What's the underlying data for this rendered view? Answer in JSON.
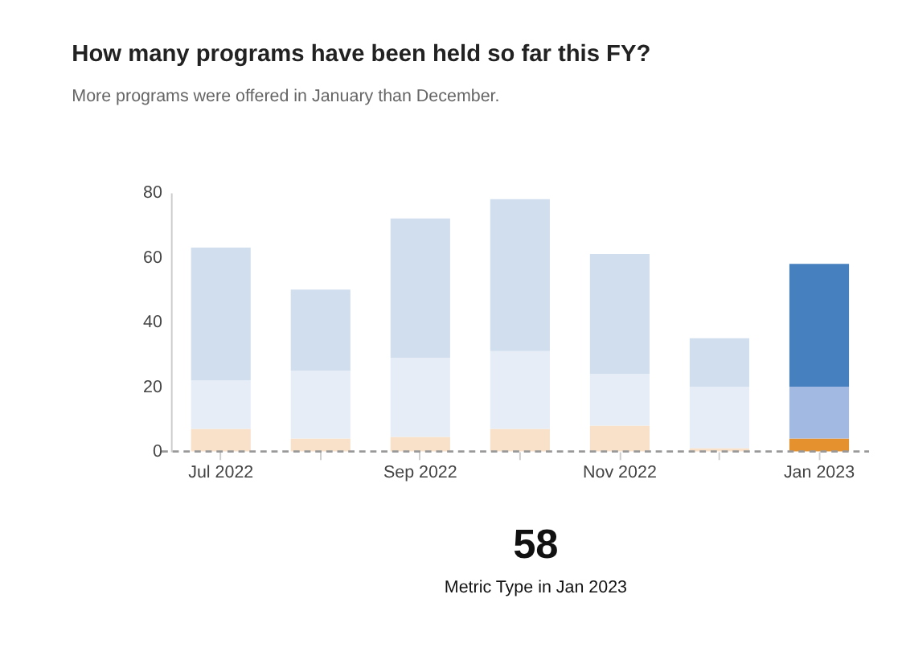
{
  "chart_data": {
    "type": "bar",
    "stacked": true,
    "title": "How many programs have been held so far this FY?",
    "subtitle": "More programs were offered in January than December.",
    "categories": [
      "Jul 2022",
      null,
      "Sep 2022",
      null,
      "Nov 2022",
      null,
      "Jan 2023"
    ],
    "series": [
      {
        "colors": [
          "#f8e1c8",
          "#f8e1c8",
          "#f8e1c8",
          "#f8e1c8",
          "#f8e1c8",
          "#f8e1c8",
          "#e5912e"
        ],
        "values": [
          7,
          4,
          4.5,
          7,
          8,
          1,
          4
        ]
      },
      {
        "colors": [
          "#e6edf7",
          "#e6edf7",
          "#e6edf7",
          "#e6edf7",
          "#e6edf7",
          "#e6edf7",
          "#a2b9e2"
        ],
        "values": [
          15,
          21,
          24.5,
          24,
          16,
          19,
          16
        ]
      },
      {
        "colors": [
          "#d1deee",
          "#d1deee",
          "#d1deee",
          "#d1deee",
          "#d1deee",
          "#d1deee",
          "#4680bf"
        ],
        "values": [
          41,
          25,
          43,
          47,
          37,
          15,
          38
        ]
      }
    ],
    "ylim": [
      0,
      80
    ],
    "yticks": [
      0,
      20,
      40,
      60,
      80
    ],
    "grid": false,
    "ref_lines": [
      {
        "axis": "y",
        "value": 0,
        "label": null,
        "color": "#999999",
        "line_style": "dashed"
      }
    ],
    "annotations": [
      "58",
      "Metric Type in Jan 2023"
    ]
  }
}
